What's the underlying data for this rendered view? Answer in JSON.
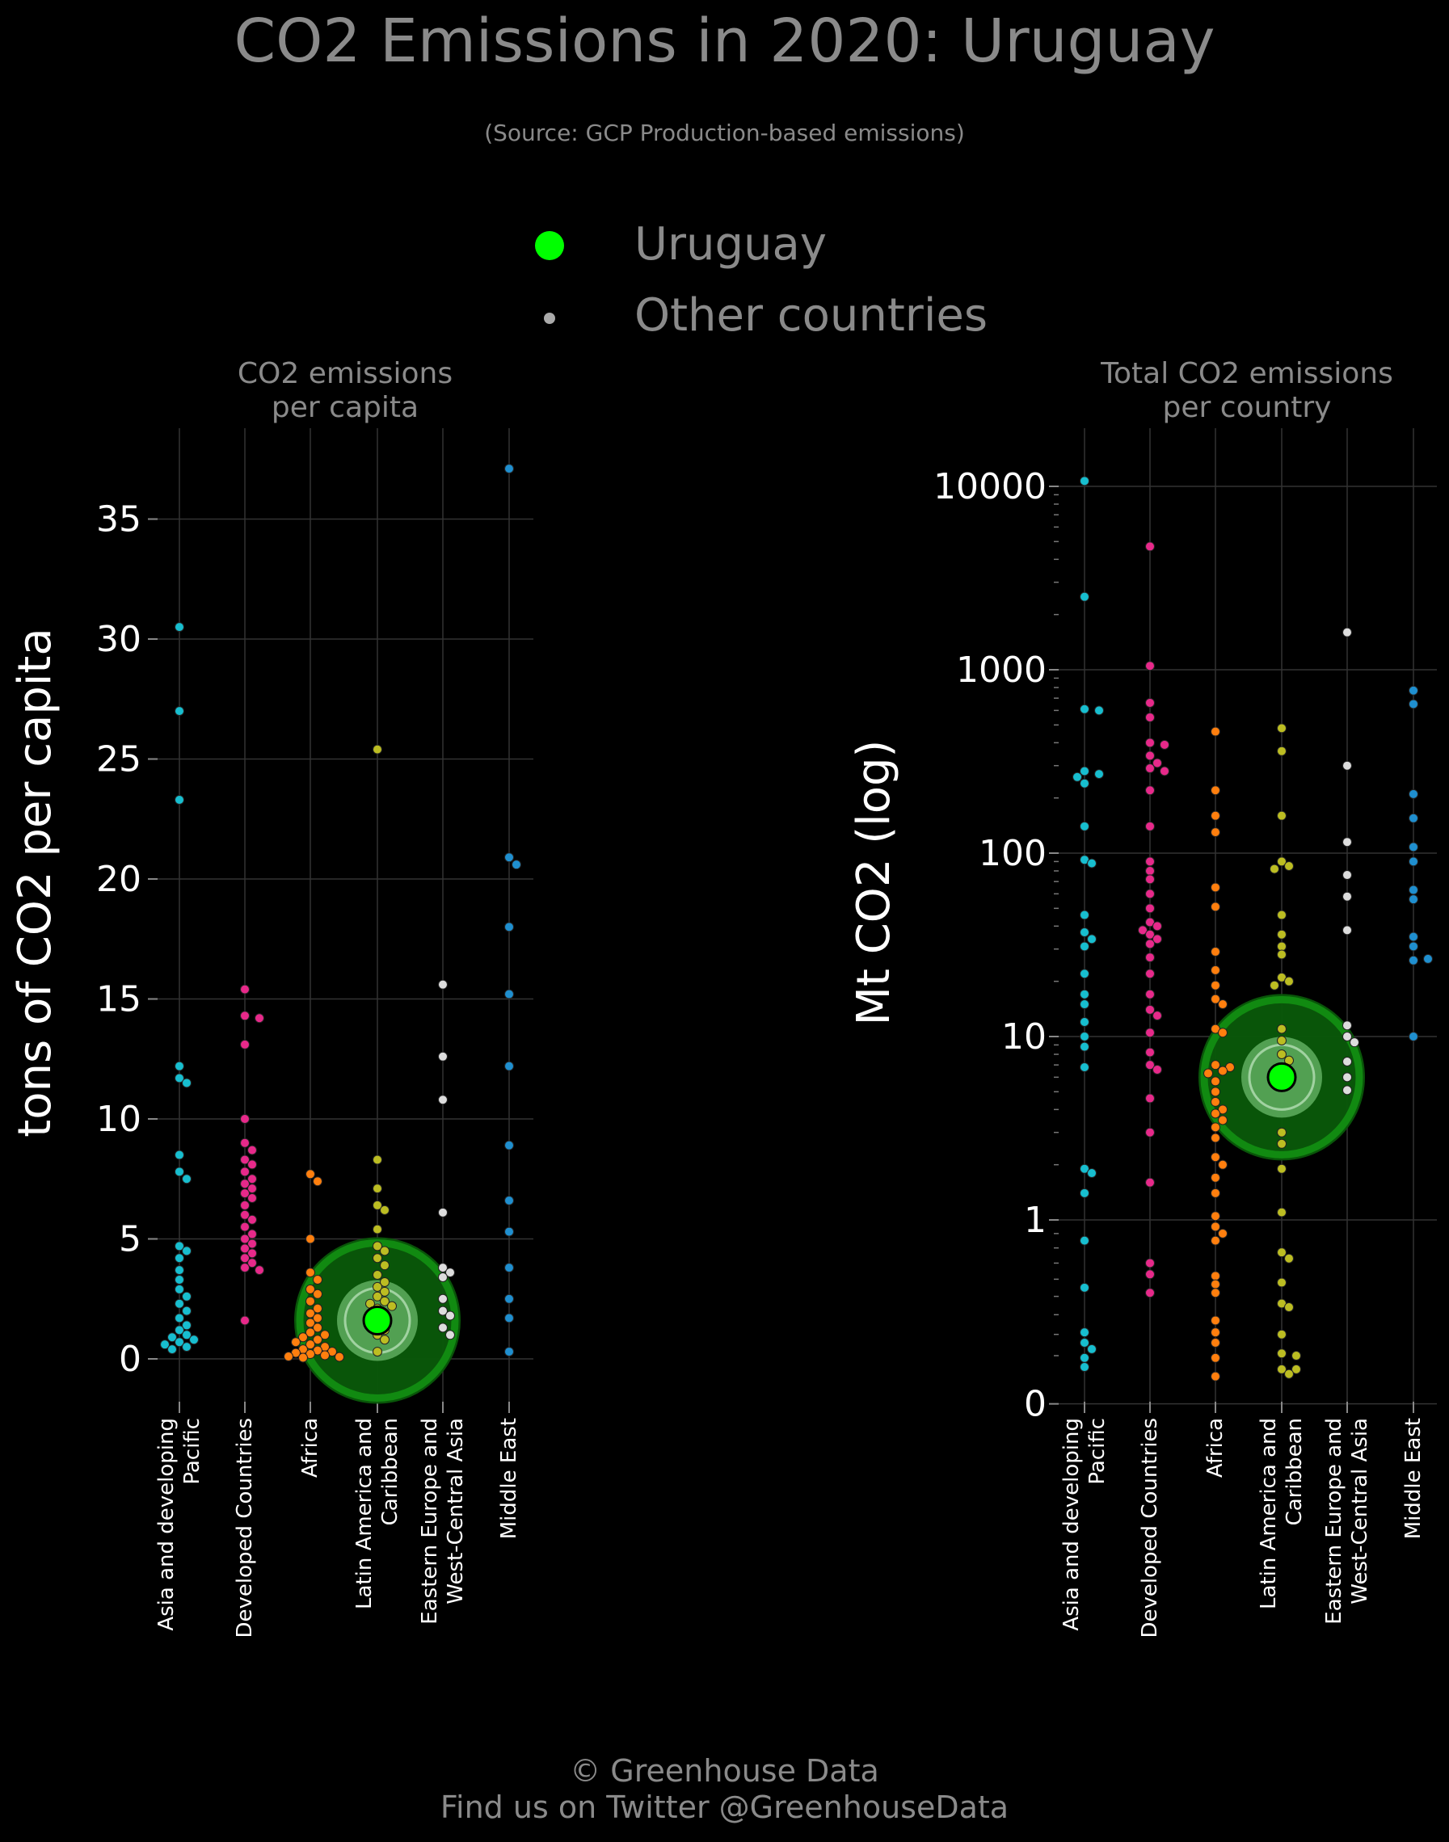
{
  "title": "CO2 Emissions in 2020: Uruguay",
  "subtitle": "(Source: GCP Production-based emissions)",
  "legend": {
    "highlight_label": "Uruguay",
    "other_label": "Other countries",
    "highlight_color": "#00ff00",
    "other_color": "#aaaaaa"
  },
  "footer": {
    "line1": "© Greenhouse Data",
    "line2": "Find us on Twitter @GreenhouseData"
  },
  "colors": {
    "Asia and developing Pacific": "#17becf",
    "Developed Countries": "#e7298a",
    "Africa": "#ff7f0e",
    "Latin America and Caribbean": "#bcbd22",
    "Eastern Europe and West-Central Asia": "#dddddd",
    "Middle East": "#1f8fcf"
  },
  "chart_data": [
    {
      "type": "scatter",
      "title": "CO2 emissions\nper capita",
      "ylabel": "tons of CO2 per capita",
      "scale": "linear",
      "ylim": [
        -1.5,
        38.5
      ],
      "yticks": [
        "0",
        "5",
        "10",
        "15",
        "20",
        "25",
        "30",
        "35"
      ],
      "grid": true,
      "categories": [
        "Asia and developing\nPacific",
        "Developed Countries",
        "Africa",
        "Latin America and\nCaribbean",
        "Eastern Europe and\nWest-Central Asia",
        "Middle East"
      ],
      "highlight": {
        "name": "Uruguay",
        "category": "Latin America and\nCaribbean",
        "value": 1.6
      },
      "series": [
        {
          "category": "Asia and developing\nPacific",
          "values": [
            30.5,
            27.0,
            23.3,
            12.2,
            11.7,
            11.5,
            8.5,
            7.8,
            7.5,
            4.7,
            4.5,
            4.2,
            3.7,
            3.3,
            2.9,
            2.6,
            2.3,
            2.0,
            1.7,
            1.4,
            1.2,
            1.0,
            0.9,
            0.8,
            0.7,
            0.6,
            0.5,
            0.4
          ]
        },
        {
          "category": "Developed Countries",
          "values": [
            15.4,
            14.3,
            14.2,
            13.1,
            10.0,
            9.0,
            8.7,
            8.3,
            8.1,
            7.8,
            7.5,
            7.3,
            7.1,
            6.9,
            6.7,
            6.4,
            6.0,
            5.8,
            5.5,
            5.2,
            5.0,
            4.8,
            4.6,
            4.4,
            4.2,
            4.0,
            3.8,
            3.7,
            1.6
          ]
        },
        {
          "category": "Africa",
          "values": [
            7.7,
            7.4,
            5.0,
            3.6,
            3.3,
            2.9,
            2.7,
            2.4,
            2.1,
            1.9,
            1.7,
            1.5,
            1.3,
            1.1,
            1.0,
            0.9,
            0.8,
            0.7,
            0.6,
            0.5,
            0.4,
            0.35,
            0.3,
            0.25,
            0.2,
            0.15,
            0.1,
            0.08,
            0.05
          ]
        },
        {
          "category": "Latin America and\nCaribbean",
          "values": [
            25.4,
            8.3,
            7.1,
            6.4,
            6.2,
            5.4,
            4.7,
            4.5,
            4.2,
            3.9,
            3.5,
            3.2,
            3.0,
            2.8,
            2.6,
            2.4,
            2.3,
            2.2,
            2.1,
            1.9,
            1.8,
            1.5,
            1.2,
            1.0,
            0.8,
            0.3
          ]
        },
        {
          "category": "Eastern Europe and\nWest-Central Asia",
          "values": [
            15.6,
            12.6,
            10.8,
            6.1,
            3.8,
            3.6,
            3.4,
            2.5,
            2.0,
            1.8,
            1.3,
            1.0
          ]
        },
        {
          "category": "Middle East",
          "values": [
            37.1,
            20.9,
            20.6,
            18.0,
            15.2,
            12.2,
            8.9,
            6.6,
            5.3,
            3.8,
            2.5,
            1.7,
            0.3
          ]
        }
      ]
    },
    {
      "type": "scatter",
      "title": "Total CO2 emissions\nper country",
      "ylabel": "Mt CO2 (log)",
      "scale": "log",
      "yticks": [
        "0",
        "1",
        "10",
        "100",
        "1000",
        "10000"
      ],
      "grid": true,
      "categories": [
        "Asia and developing\nPacific",
        "Developed Countries",
        "Africa",
        "Latin America and\nCaribbean",
        "Eastern Europe and\nWest-Central Asia",
        "Middle East"
      ],
      "highlight": {
        "name": "Uruguay",
        "category": "Latin America and\nCaribbean",
        "value": 6.0
      },
      "series": [
        {
          "category": "Asia and developing\nPacific",
          "values": [
            10700,
            2500,
            610,
            600,
            280,
            270,
            260,
            240,
            140,
            92,
            88,
            46,
            37,
            34,
            31,
            22,
            17,
            15,
            12,
            10,
            8.8,
            6.8,
            1.9,
            1.8,
            1.4,
            0.85,
            0.55,
            0.31,
            0.26,
            0.23,
            0.19,
            0.15
          ]
        },
        {
          "category": "Developed Countries",
          "values": [
            4700,
            1050,
            660,
            550,
            400,
            390,
            340,
            310,
            290,
            280,
            220,
            140,
            90,
            80,
            72,
            60,
            50,
            42,
            40,
            38,
            36,
            34,
            32,
            27,
            22,
            17,
            14,
            13,
            10.5,
            8.2,
            7.0,
            6.6,
            4.6,
            3.0,
            1.6,
            0.7,
            0.63,
            0.52
          ]
        },
        {
          "category": "Africa",
          "values": [
            460,
            220,
            160,
            130,
            65,
            51,
            29,
            23,
            19,
            16,
            15,
            11,
            10.5,
            7.0,
            6.8,
            6.5,
            6.3,
            5.7,
            5.0,
            4.4,
            4.0,
            3.8,
            3.5,
            3.2,
            2.8,
            2.2,
            2.0,
            1.7,
            1.4,
            1.05,
            0.95,
            0.9,
            0.85,
            0.62,
            0.57,
            0.52,
            0.37,
            0.31,
            0.26,
            0.19,
            0.11
          ]
        },
        {
          "category": "Latin America and\nCaribbean",
          "values": [
            480,
            360,
            160,
            90,
            85,
            82,
            46,
            36,
            31,
            28,
            21,
            20,
            19,
            11,
            9.5,
            8.0,
            7.4,
            6.8,
            6.2,
            3.0,
            2.6,
            1.9,
            1.1,
            0.77,
            0.73,
            0.58,
            0.46,
            0.44,
            0.3,
            0.21,
            0.2,
            0.14,
            0.14,
            0.12
          ]
        },
        {
          "category": "Eastern Europe and\nWest-Central Asia",
          "values": [
            1600,
            300,
            115,
            76,
            58,
            38,
            11.5,
            10.0,
            9.3,
            7.3,
            6.0,
            5.1
          ]
        },
        {
          "category": "Middle East",
          "values": [
            770,
            650,
            210,
            155,
            108,
            90,
            63,
            56,
            35,
            31,
            26,
            26.5,
            10
          ]
        }
      ]
    }
  ]
}
